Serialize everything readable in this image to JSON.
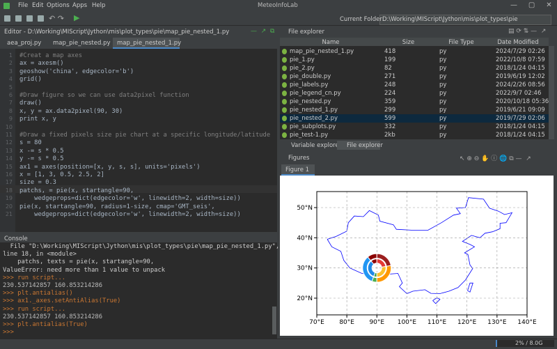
{
  "app": {
    "title": "MeteoInfoLab",
    "menu": [
      "File",
      "Edit",
      "Options",
      "Apps",
      "Help"
    ],
    "current_folder_label": "Current Folder:",
    "current_folder": "D:\\Working\\MIScript\\Jython\\mis\\plot_types\\pie",
    "status": "2% / 8.0G"
  },
  "editor": {
    "title": "Editor - D:\\Working\\MIScript\\Jython\\mis\\plot_types\\pie\\map_pie_nested_1.py",
    "tabs": [
      "aea_proj.py",
      "map_pie_nested.py",
      "map_pie_nested_1.py"
    ],
    "line_numbers": [
      1,
      2,
      3,
      4,
      5,
      6,
      7,
      8,
      9,
      10,
      11,
      12,
      13,
      14,
      15,
      16,
      17,
      18,
      19,
      20,
      21
    ],
    "code": [
      "#Creat a map axes",
      "ax = axesm()",
      "geoshow('china', edgecolor='b')",
      "grid()",
      null,
      "#Draw figure so we can use data2pixel function",
      "draw()",
      "x, y = ax.data2pixel(90, 30)",
      "print x, y",
      null,
      "#Draw a fixed pixels size pie chart at a specific longitude/latitude",
      "s = 80",
      "x -= s * 0.5",
      "y -= s * 0.5",
      "ax1 = axes(position=[x, y, s, s], units='pixels')",
      "x = [1, 3, 0.5, 2.5, 2]",
      "size = 0.3",
      "patchs, = pie(x, startangle=90,",
      "    wedgeprops=dict(edgecolor='w', linewidth=2, width=size))",
      "pie(x, startangle=90, radius=1-size, cmap='GMT_seis',",
      "    wedgeprops=dict(edgecolor='w', linewidth=2, width=size))"
    ]
  },
  "console": {
    "title": "Console",
    "lines": [
      "  File \"D:\\Working\\MIScript\\Jython\\mis\\plot_types\\pie\\map_pie_nested_1.py\",",
      "line 18, in <module>",
      "    patchs, texts = pie(x, startangle=90,",
      "ValueError: need more than 1 value to unpack",
      ">>> run script...",
      "230.537142857 160.853214286",
      ">>> plt.antialias()",
      ">>> ax1._axes.setAntiAlias(True)",
      ">>> run script...",
      "230.537142857 160.853214286",
      ">>> plt.antialias(True)",
      ">>>"
    ]
  },
  "file_explorer": {
    "title": "File explorer",
    "columns": [
      "Name",
      "Size",
      "File Type",
      "Date Modified"
    ],
    "rows": [
      [
        "map_pie_nested_1.py",
        418,
        "py",
        "2024/7/29 02:26"
      ],
      [
        "pie_1.py",
        199,
        "py",
        "2022/10/8 07:59"
      ],
      [
        "pie_2.py",
        82,
        "py",
        "2018/1/24 04:15"
      ],
      [
        "pie_double.py",
        271,
        "py",
        "2019/6/19 12:02"
      ],
      [
        "pie_labels.py",
        248,
        "py",
        "2024/2/26 08:56"
      ],
      [
        "pie_legend_cn.py",
        224,
        "py",
        "2022/9/7 02:46"
      ],
      [
        "pie_nested.py",
        359,
        "py",
        "2020/10/18 05:36"
      ],
      [
        "pie_nested_1.py",
        299,
        "py",
        "2019/6/21 09:09"
      ],
      [
        "pie_nested_2.py",
        599,
        "py",
        "2019/7/29 02:06"
      ],
      [
        "pie_subplots.py",
        332,
        "py",
        "2018/1/24 04:15"
      ],
      [
        "pie_test-1.py",
        "2kb",
        "py",
        "2018/1/24 04:15"
      ]
    ],
    "tabs": [
      "Variable explorer",
      "File explorer"
    ]
  },
  "figures": {
    "title": "Figures",
    "tab": "Figure 1",
    "y_labels": [
      "50°N",
      "40°N",
      "30°N",
      "20°N"
    ],
    "x_labels": [
      "70°E",
      "80°E",
      "90°E",
      "100°E",
      "110°E",
      "120°E",
      "130°E",
      "140°E"
    ]
  }
}
